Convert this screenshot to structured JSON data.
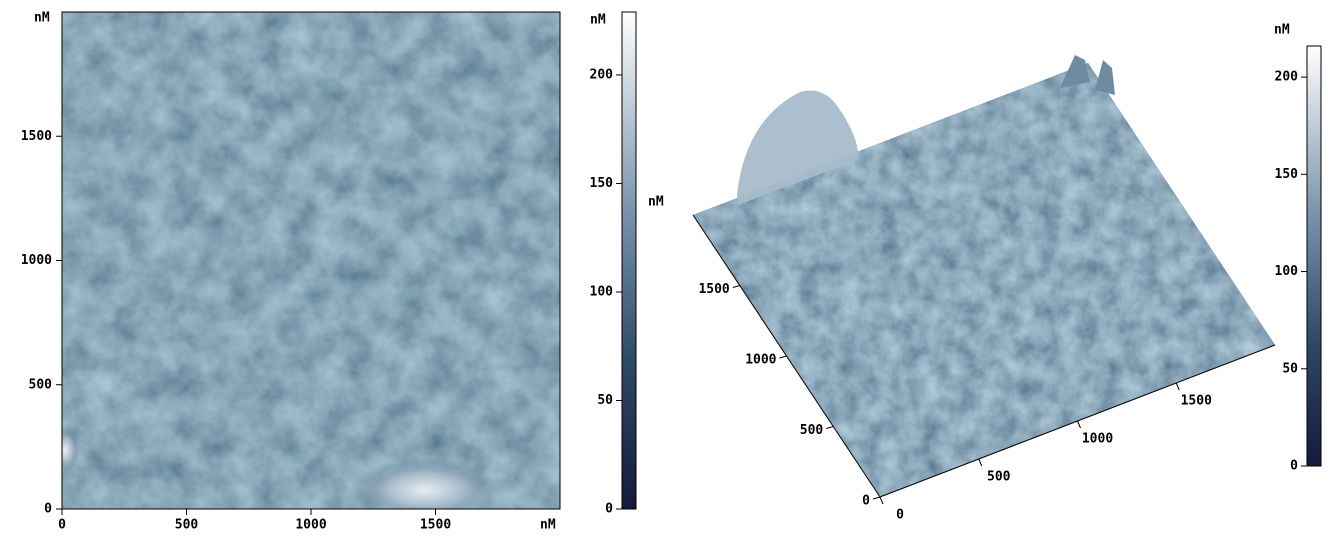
{
  "left_panel": {
    "y_unit": "nM",
    "x_unit": "nM",
    "xlim": [
      0,
      2000
    ],
    "ylim": [
      0,
      2000
    ],
    "xticks": [
      0,
      500,
      1000,
      1500
    ],
    "yticks": [
      0,
      500,
      1000,
      1500
    ]
  },
  "left_colorbar": {
    "unit": "nM",
    "lim": [
      0,
      229
    ],
    "ticks": [
      0,
      50,
      100,
      150,
      200
    ]
  },
  "right_panel": {
    "z_unit": "nM",
    "xlim": [
      0,
      2000
    ],
    "ylim": [
      0,
      2000
    ],
    "xticks": [
      0,
      500,
      1000,
      1500
    ],
    "yticks": [
      0,
      500,
      1000,
      1500
    ]
  },
  "right_colorbar": {
    "unit": "nM",
    "lim": [
      0,
      216
    ],
    "ticks": [
      0,
      50,
      100,
      150,
      200
    ]
  }
}
